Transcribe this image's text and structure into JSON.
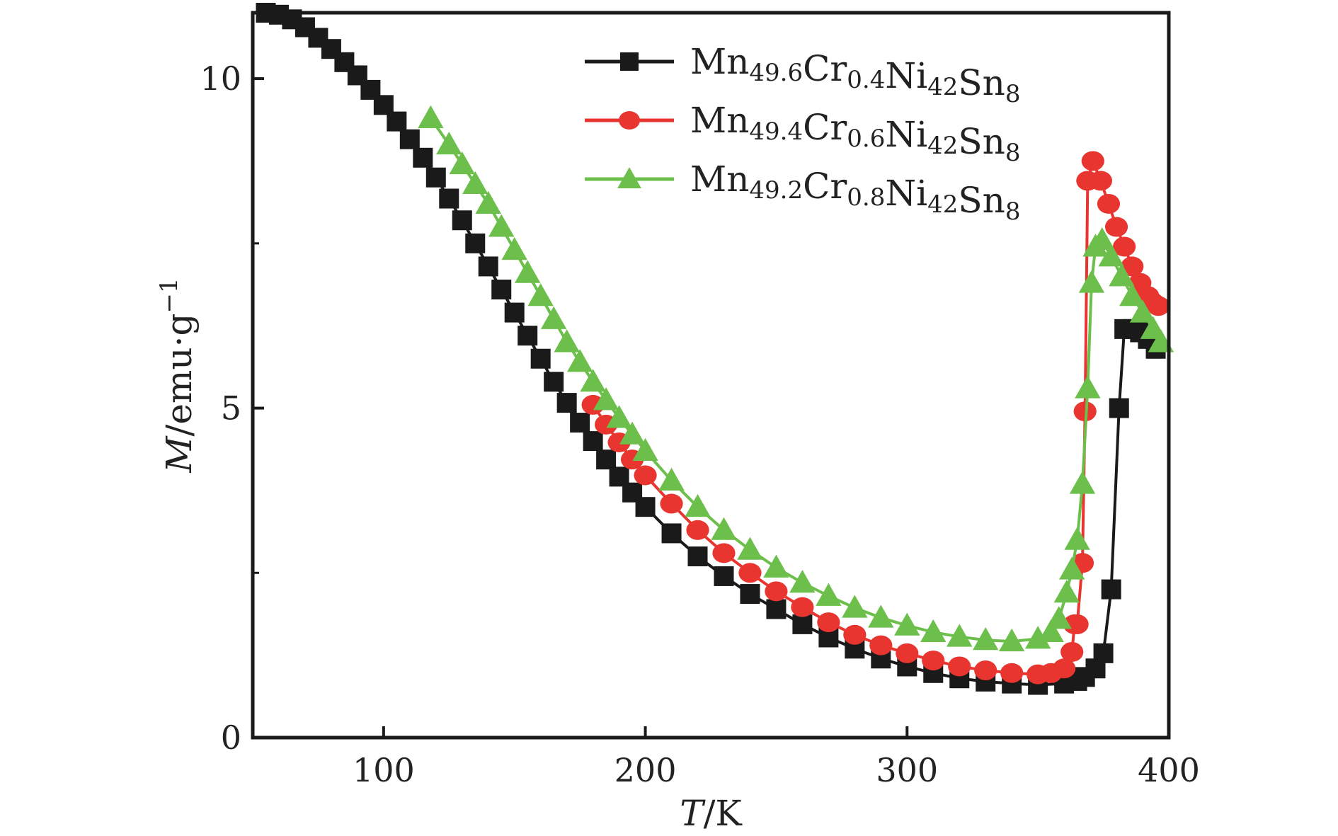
{
  "chart_data": {
    "type": "line",
    "title": "",
    "xlabel": {
      "italic": "T",
      "rest": "/K"
    },
    "ylabel": {
      "italic": "M",
      "rest": "/emu·g",
      "sup": "−1"
    },
    "xlim": [
      50,
      400
    ],
    "ylim": [
      0,
      11
    ],
    "xticks": [
      100,
      200,
      300,
      400
    ],
    "xtick_labels": [
      "100",
      "200",
      "300",
      "400"
    ],
    "yticks": [
      0,
      5,
      10
    ],
    "ytick_labels": [
      "0",
      "5",
      "10"
    ],
    "grid": false,
    "legend_position": "top-right",
    "series": [
      {
        "name": "Mn49.6Cr0.4Ni42Sn8",
        "name_parts": [
          [
            "Mn",
            ""
          ],
          [
            "49.6",
            "sub"
          ],
          [
            "Cr",
            ""
          ],
          [
            "0.4",
            "sub"
          ],
          [
            "Ni",
            ""
          ],
          [
            "42",
            "sub"
          ],
          [
            "Sn",
            ""
          ],
          [
            "8",
            "sub"
          ]
        ],
        "color": "#1a1a1a",
        "marker": "square",
        "x": [
          55,
          60,
          65,
          70,
          75,
          80,
          85,
          90,
          95,
          100,
          105,
          110,
          115,
          120,
          125,
          130,
          135,
          140,
          145,
          150,
          155,
          160,
          165,
          170,
          175,
          180,
          185,
          190,
          195,
          200,
          210,
          220,
          230,
          240,
          250,
          260,
          270,
          280,
          290,
          300,
          310,
          320,
          330,
          340,
          350,
          360,
          365,
          368,
          372,
          375,
          378,
          381,
          383,
          386,
          389,
          392,
          395
        ],
        "y": [
          11.0,
          10.97,
          10.9,
          10.78,
          10.62,
          10.45,
          10.25,
          10.05,
          9.83,
          9.6,
          9.35,
          9.08,
          8.8,
          8.5,
          8.18,
          7.85,
          7.5,
          7.15,
          6.8,
          6.45,
          6.1,
          5.75,
          5.4,
          5.08,
          4.78,
          4.5,
          4.22,
          3.96,
          3.72,
          3.5,
          3.1,
          2.75,
          2.45,
          2.18,
          1.95,
          1.72,
          1.52,
          1.35,
          1.2,
          1.08,
          0.98,
          0.9,
          0.85,
          0.82,
          0.8,
          0.82,
          0.86,
          0.92,
          1.05,
          1.28,
          2.25,
          5.0,
          6.2,
          6.2,
          6.15,
          6.05,
          5.9
        ]
      },
      {
        "name": "Mn49.4Cr0.6Ni42Sn8",
        "name_parts": [
          [
            "Mn",
            ""
          ],
          [
            "49.4",
            "sub"
          ],
          [
            "Cr",
            ""
          ],
          [
            "0.6",
            "sub"
          ],
          [
            "Ni",
            ""
          ],
          [
            "42",
            "sub"
          ],
          [
            "Sn",
            ""
          ],
          [
            "8",
            "sub"
          ]
        ],
        "color": "#e83530",
        "marker": "circle",
        "x": [
          180,
          185,
          190,
          195,
          200,
          210,
          220,
          230,
          240,
          250,
          260,
          270,
          280,
          290,
          300,
          310,
          320,
          330,
          340,
          350,
          355,
          360,
          363,
          364,
          365,
          367,
          368,
          369,
          371,
          374,
          377,
          380,
          383,
          386,
          389,
          392,
          394,
          396
        ],
        "y": [
          5.05,
          4.75,
          4.48,
          4.22,
          3.98,
          3.55,
          3.15,
          2.8,
          2.5,
          2.22,
          1.98,
          1.75,
          1.56,
          1.4,
          1.28,
          1.17,
          1.08,
          1.02,
          0.98,
          0.96,
          0.98,
          1.05,
          1.3,
          1.72,
          1.72,
          2.65,
          4.95,
          8.45,
          8.75,
          8.45,
          8.1,
          7.75,
          7.45,
          7.15,
          6.9,
          6.7,
          6.6,
          6.55
        ]
      },
      {
        "name": "Mn49.2Cr0.8Ni42Sn8",
        "name_parts": [
          [
            "Mn",
            ""
          ],
          [
            "49.2",
            "sub"
          ],
          [
            "Cr",
            ""
          ],
          [
            "0.8",
            "sub"
          ],
          [
            "Ni",
            ""
          ],
          [
            "42",
            "sub"
          ],
          [
            "Sn",
            ""
          ],
          [
            "8",
            "sub"
          ]
        ],
        "color": "#6cbf4a",
        "marker": "triangle",
        "x": [
          118,
          125,
          130,
          135,
          140,
          145,
          150,
          155,
          160,
          165,
          170,
          175,
          180,
          185,
          190,
          195,
          200,
          210,
          220,
          230,
          240,
          250,
          260,
          270,
          280,
          290,
          300,
          310,
          320,
          330,
          340,
          350,
          355,
          358,
          361,
          363,
          365,
          367,
          369,
          370.5,
          372,
          374.5,
          378,
          382,
          386,
          390,
          394,
          397
        ],
        "y": [
          9.4,
          9.0,
          8.7,
          8.4,
          8.1,
          7.75,
          7.4,
          7.05,
          6.7,
          6.35,
          6.0,
          5.7,
          5.4,
          5.12,
          4.85,
          4.6,
          4.35,
          3.9,
          3.5,
          3.15,
          2.85,
          2.58,
          2.35,
          2.15,
          1.97,
          1.82,
          1.7,
          1.6,
          1.53,
          1.48,
          1.46,
          1.5,
          1.6,
          1.8,
          2.2,
          2.55,
          3.0,
          3.85,
          5.3,
          6.9,
          7.45,
          7.55,
          7.3,
          7.0,
          6.7,
          6.45,
          6.2,
          6.0
        ]
      }
    ]
  }
}
